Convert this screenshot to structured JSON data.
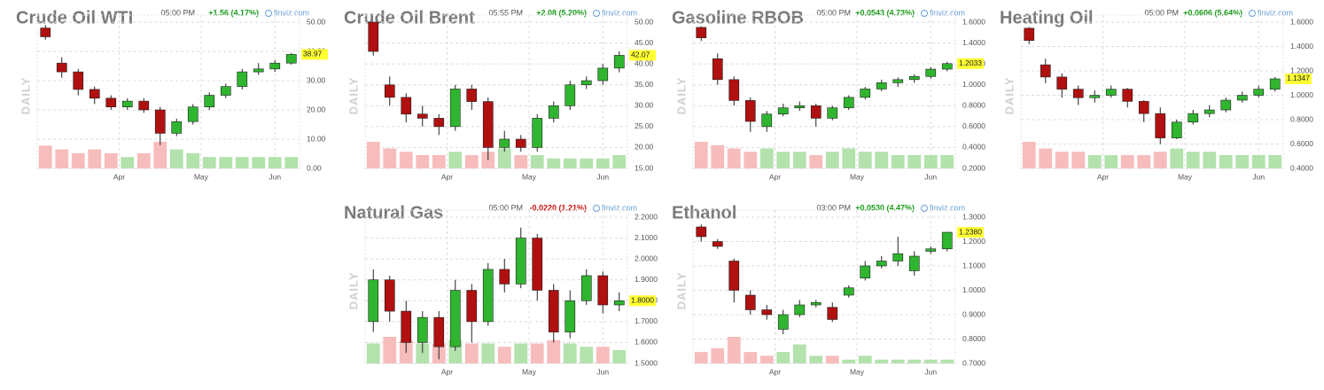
{
  "chart_data": [
    {
      "type": "candlestick",
      "title": "Crude Oil WTI",
      "time": "05:00 PM",
      "change": "+1.56 (4.17%)",
      "change_color": "#1a9a1a",
      "source": "finviz.com",
      "side_label": "DAILY",
      "open": [
        48,
        36,
        33,
        27,
        24,
        21,
        23,
        20,
        12,
        16,
        21,
        25,
        28,
        33,
        34,
        36
      ],
      "high": [
        49,
        38,
        34,
        28,
        25,
        24,
        24,
        21,
        17,
        22,
        26,
        29,
        34,
        36,
        37,
        39.5
      ],
      "low": [
        44,
        31,
        25,
        22,
        20,
        20,
        19,
        8,
        11,
        15,
        20,
        24,
        27,
        32,
        33,
        35.5
      ],
      "close": [
        45,
        33,
        27,
        24,
        21,
        23,
        20,
        12,
        16,
        21,
        25,
        28,
        33,
        34,
        36,
        38.97
      ],
      "volume": [
        6,
        5,
        4,
        5,
        4,
        3,
        4,
        7,
        5,
        4,
        3,
        3,
        3,
        3,
        3,
        3
      ],
      "last": 38.97,
      "ylim": [
        0,
        50
      ],
      "yticks": [
        {
          "value": 0,
          "label": "0.00"
        },
        {
          "value": 10,
          "label": "10.00"
        },
        {
          "value": 20,
          "label": "20.00"
        },
        {
          "value": 30,
          "label": "30.00"
        },
        {
          "value": 40,
          "label": "40.00"
        },
        {
          "value": 50,
          "label": "50.00"
        }
      ],
      "xticks": [
        {
          "value": 4.5,
          "label": "Apr"
        },
        {
          "value": 9.5,
          "label": "May"
        },
        {
          "value": 14,
          "label": "Jun"
        }
      ],
      "up_color": "#2fb52f",
      "down_color": "#b01010",
      "up_volume_color": "#b3e2ad",
      "down_volume_color": "#f7bcbc",
      "grid": true
    },
    {
      "type": "candlestick",
      "title": "Crude Oil Brent",
      "time": "05:55 PM",
      "change": "+2.08 (5.20%)",
      "change_color": "#1a9a1a",
      "source": "finviz.com",
      "side_label": "DAILY",
      "open": [
        50,
        35,
        32,
        28,
        27,
        25,
        34,
        31,
        20,
        22,
        20,
        27,
        30,
        35,
        36,
        39
      ],
      "high": [
        50,
        37,
        33,
        30,
        28,
        35,
        35,
        32,
        24,
        23,
        28,
        31,
        36,
        37,
        40,
        43
      ],
      "low": [
        42,
        30,
        26,
        25,
        23,
        24,
        29,
        17,
        19,
        19,
        19,
        26,
        29,
        34,
        35,
        38
      ],
      "close": [
        43,
        32,
        28,
        27,
        25,
        34,
        31,
        20,
        22,
        20,
        27,
        30,
        35,
        36,
        39,
        42.07
      ],
      "volume": [
        8,
        6,
        5,
        4,
        4,
        5,
        4,
        5,
        6,
        4,
        4,
        3,
        3,
        3,
        3,
        4
      ],
      "last": 42.07,
      "ylim": [
        15,
        50
      ],
      "yticks": [
        {
          "value": 15,
          "label": "15.00"
        },
        {
          "value": 20,
          "label": "20.00"
        },
        {
          "value": 25,
          "label": "25.00"
        },
        {
          "value": 30,
          "label": "30.00"
        },
        {
          "value": 35,
          "label": "35.00"
        },
        {
          "value": 40,
          "label": "40.00"
        },
        {
          "value": 45,
          "label": "45.00"
        },
        {
          "value": 50,
          "label": "50.00"
        }
      ],
      "xticks": [
        {
          "value": 4.5,
          "label": "Apr"
        },
        {
          "value": 9.5,
          "label": "May"
        },
        {
          "value": 14,
          "label": "Jun"
        }
      ],
      "up_color": "#2fb52f",
      "down_color": "#b01010",
      "up_volume_color": "#b3e2ad",
      "down_volume_color": "#f7bcbc",
      "grid": true
    },
    {
      "type": "candlestick",
      "title": "Gasoline RBOB",
      "time": "05:00 PM",
      "change": "+0.0543 (4.73%)",
      "change_color": "#1a9a1a",
      "source": "finviz.com",
      "side_label": "DAILY",
      "open": [
        1.55,
        1.25,
        1.05,
        0.85,
        0.6,
        0.72,
        0.78,
        0.8,
        0.68,
        0.78,
        0.88,
        0.96,
        1.02,
        1.05,
        1.08,
        1.15
      ],
      "high": [
        1.56,
        1.3,
        1.08,
        0.88,
        0.75,
        0.82,
        0.84,
        0.82,
        0.8,
        0.9,
        0.98,
        1.05,
        1.07,
        1.1,
        1.17,
        1.22
      ],
      "low": [
        1.42,
        1.0,
        0.8,
        0.55,
        0.55,
        0.7,
        0.75,
        0.6,
        0.66,
        0.76,
        0.86,
        0.94,
        0.98,
        1.02,
        1.06,
        1.13
      ],
      "close": [
        1.45,
        1.05,
        0.85,
        0.65,
        0.72,
        0.78,
        0.8,
        0.68,
        0.78,
        0.88,
        0.96,
        1.02,
        1.05,
        1.08,
        1.15,
        1.2033
      ],
      "volume": [
        8,
        7,
        6,
        5,
        6,
        5,
        5,
        4,
        5,
        6,
        5,
        5,
        4,
        4,
        4,
        4
      ],
      "last": 1.2033,
      "ylim": [
        0.2,
        1.6
      ],
      "yticks": [
        {
          "value": 0.2,
          "label": "0.2000"
        },
        {
          "value": 0.4,
          "label": "0.4000"
        },
        {
          "value": 0.6,
          "label": "0.6000"
        },
        {
          "value": 0.8,
          "label": "0.8000"
        },
        {
          "value": 1.0,
          "label": "1.0000"
        },
        {
          "value": 1.2,
          "label": "1.2000"
        },
        {
          "value": 1.4,
          "label": "1.4000"
        },
        {
          "value": 1.6,
          "label": "1.6000"
        }
      ],
      "xticks": [
        {
          "value": 4.5,
          "label": "Apr"
        },
        {
          "value": 9.5,
          "label": "May"
        },
        {
          "value": 14,
          "label": "Jun"
        }
      ],
      "up_color": "#2fb52f",
      "down_color": "#b01010",
      "up_volume_color": "#b3e2ad",
      "down_volume_color": "#f7bcbc",
      "grid": true
    },
    {
      "type": "candlestick",
      "title": "Heating Oil",
      "time": "05:00 PM",
      "change": "+0.0606 (5.64%)",
      "change_color": "#1a9a1a",
      "source": "finviz.com",
      "side_label": "DAILY",
      "open": [
        1.55,
        1.25,
        1.15,
        1.05,
        0.98,
        1.0,
        1.05,
        0.95,
        0.85,
        0.65,
        0.78,
        0.85,
        0.88,
        0.96,
        1.0,
        1.05
      ],
      "high": [
        1.56,
        1.3,
        1.18,
        1.08,
        1.04,
        1.08,
        1.06,
        0.96,
        0.9,
        0.8,
        0.88,
        0.92,
        0.98,
        1.03,
        1.08,
        1.15
      ],
      "low": [
        1.42,
        1.1,
        0.98,
        0.92,
        0.94,
        0.98,
        0.9,
        0.78,
        0.6,
        0.64,
        0.76,
        0.82,
        0.86,
        0.94,
        0.98,
        1.03
      ],
      "close": [
        1.45,
        1.15,
        1.05,
        0.98,
        1.0,
        1.05,
        0.95,
        0.85,
        0.65,
        0.78,
        0.85,
        0.88,
        0.96,
        1.0,
        1.05,
        1.1347
      ],
      "volume": [
        8,
        6,
        5,
        5,
        4,
        4,
        4,
        4,
        5,
        6,
        5,
        5,
        4,
        4,
        4,
        4
      ],
      "last": 1.1347,
      "ylim": [
        0.4,
        1.6
      ],
      "yticks": [
        {
          "value": 0.4,
          "label": "0.4000"
        },
        {
          "value": 0.6,
          "label": "0.6000"
        },
        {
          "value": 0.8,
          "label": "0.8000"
        },
        {
          "value": 1.0,
          "label": "1.0000"
        },
        {
          "value": 1.2,
          "label": "1.2000"
        },
        {
          "value": 1.4,
          "label": "1.4000"
        },
        {
          "value": 1.6,
          "label": "1.6000"
        }
      ],
      "xticks": [
        {
          "value": 4.5,
          "label": "Apr"
        },
        {
          "value": 9.5,
          "label": "May"
        },
        {
          "value": 14,
          "label": "Jun"
        }
      ],
      "up_color": "#2fb52f",
      "down_color": "#b01010",
      "up_volume_color": "#b3e2ad",
      "down_volume_color": "#f7bcbc",
      "grid": true
    },
    {
      "type": "candlestick",
      "title": "Natural Gas",
      "time": "05:00 PM",
      "change": "-0.0220 (1.21%)",
      "change_color": "#cc1010",
      "source": "finviz.com",
      "side_label": "DAILY",
      "open": [
        1.7,
        1.9,
        1.75,
        1.6,
        1.72,
        1.58,
        1.85,
        1.7,
        1.95,
        1.88,
        2.1,
        1.85,
        1.65,
        1.8,
        1.92,
        1.78
      ],
      "high": [
        1.95,
        1.92,
        1.8,
        1.75,
        1.75,
        1.9,
        1.88,
        1.98,
        2.0,
        2.15,
        2.12,
        1.88,
        1.85,
        1.95,
        1.94,
        1.84
      ],
      "low": [
        1.65,
        1.7,
        1.55,
        1.55,
        1.52,
        1.56,
        1.6,
        1.68,
        1.84,
        1.86,
        1.8,
        1.6,
        1.62,
        1.78,
        1.74,
        1.75
      ],
      "close": [
        1.9,
        1.75,
        1.6,
        1.72,
        1.58,
        1.85,
        1.7,
        1.95,
        1.88,
        2.1,
        1.85,
        1.65,
        1.8,
        1.92,
        1.78,
        1.8
      ],
      "volume": [
        6,
        8,
        7,
        6,
        6,
        7,
        6,
        6,
        5,
        6,
        6,
        7,
        6,
        5,
        5,
        4
      ],
      "last": {
        "value": 1.8,
        "label": "1.8000"
      },
      "ylim": [
        1.5,
        2.2
      ],
      "yticks": [
        {
          "value": 1.5,
          "label": "1.5000"
        },
        {
          "value": 1.6,
          "label": "1.6000"
        },
        {
          "value": 1.7,
          "label": "1.7000"
        },
        {
          "value": 1.8,
          "label": "1.8000"
        },
        {
          "value": 1.9,
          "label": "1.9000"
        },
        {
          "value": 2.0,
          "label": "2.0000"
        },
        {
          "value": 2.1,
          "label": "2.1000"
        },
        {
          "value": 2.2,
          "label": "2.2000"
        }
      ],
      "xticks": [
        {
          "value": 4.5,
          "label": "Apr"
        },
        {
          "value": 9.5,
          "label": "May"
        },
        {
          "value": 14,
          "label": "Jun"
        }
      ],
      "up_color": "#2fb52f",
      "down_color": "#b01010",
      "up_volume_color": "#b3e2ad",
      "down_volume_color": "#f7bcbc",
      "grid": true
    },
    {
      "type": "candlestick",
      "title": "Ethanol",
      "time": "03:00 PM",
      "change": "+0.0530 (4.47%)",
      "change_color": "#1a9a1a",
      "source": "finviz.com",
      "side_label": "DAILY",
      "open": [
        1.26,
        1.2,
        1.12,
        0.98,
        0.92,
        0.84,
        0.9,
        0.94,
        0.93,
        0.98,
        1.05,
        1.1,
        1.12,
        1.08,
        1.16,
        1.17
      ],
      "high": [
        1.27,
        1.21,
        1.13,
        1.0,
        0.94,
        0.92,
        0.96,
        0.96,
        0.95,
        1.02,
        1.12,
        1.14,
        1.22,
        1.16,
        1.18,
        1.24
      ],
      "low": [
        1.2,
        1.17,
        0.95,
        0.9,
        0.88,
        0.82,
        0.89,
        0.93,
        0.87,
        0.97,
        1.04,
        1.09,
        1.1,
        1.06,
        1.15,
        1.16
      ],
      "close": [
        1.22,
        1.18,
        1.0,
        0.92,
        0.9,
        0.9,
        0.94,
        0.95,
        0.88,
        1.01,
        1.1,
        1.12,
        1.15,
        1.14,
        1.17,
        1.238
      ],
      "volume": [
        3,
        4,
        7,
        3,
        2,
        3,
        5,
        2,
        2,
        1,
        2,
        1,
        1,
        1,
        1,
        1
      ],
      "last": {
        "value": 1.238,
        "label": "1.2380"
      },
      "ylim": [
        0.7,
        1.3
      ],
      "yticks": [
        {
          "value": 0.7,
          "label": "0.7000"
        },
        {
          "value": 0.8,
          "label": "0.8000"
        },
        {
          "value": 0.9,
          "label": "0.9000"
        },
        {
          "value": 1.0,
          "label": "1.0000"
        },
        {
          "value": 1.1,
          "label": "1.1000"
        },
        {
          "value": 1.2,
          "label": "1.2000"
        },
        {
          "value": 1.3,
          "label": "1.3000"
        }
      ],
      "xticks": [
        {
          "value": 4.5,
          "label": "Apr"
        },
        {
          "value": 9.5,
          "label": "May"
        },
        {
          "value": 14,
          "label": "Jun"
        }
      ],
      "up_color": "#2fb52f",
      "down_color": "#b01010",
      "up_volume_color": "#b3e2ad",
      "down_volume_color": "#f7bcbc",
      "grid": true
    }
  ]
}
